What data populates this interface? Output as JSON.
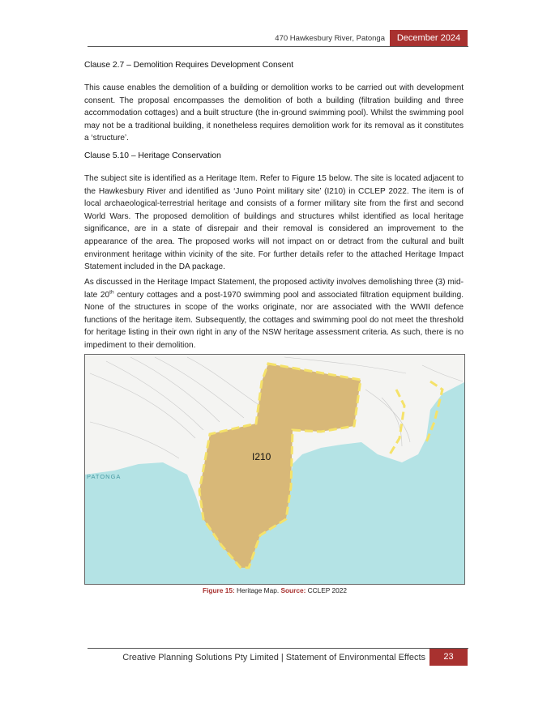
{
  "header": {
    "address": "470 Hawkesbury River, Patonga",
    "date": "December 2024"
  },
  "sections": [
    {
      "heading": "Clause 2.7 – Demolition Requires Development Consent",
      "paragraphs": [
        [
          "This cause enables the demolition of a building or demolition works to be carried out with development consent. The proposal encompasses the demolition of both a building (filtration building and three accommodation cottages) and a built structure (the in-ground swimming pool). Whilst the swimming pool may not be a traditional building, it nonetheless requires demolition work for its removal as it constitutes a ‘structure’."
        ]
      ]
    },
    {
      "heading": "Clause 5.10 – Heritage Conservation",
      "paragraphs": [
        [
          "The subject site is identified as a Heritage Item. Refer to ",
          "Figure 15",
          " below. The site is located adjacent to the Hawkesbury River and identified as ‘Juno Point military site’ (I210) in CCLEP 2022. The item is of local archaeological-terrestrial heritage and consists of a former military site from the first and second World Wars. The proposed demolition of buildings and structures whilst identified as local heritage significance, are in a state of disrepair and their removal is considered an improvement to the appearance of the area. The proposed works will not impact on or detract from the cultural and built environment heritage within vicinity of the site. For further details refer to the attached Heritage Impact Statement included in the DA package."
        ],
        [
          "As discussed in the Heritage Impact Statement, the proposed activity involves demolishing three (3) mid-late 20",
          "th",
          " century cottages and a post-1970 swimming pool and associated filtration equipment building. None of the structures in scope of the works originate, nor are associated with the WWII defence functions of the heritage item. Subsequently, the cottages and swimming pool do not meet the threshold for heritage listing in their own right in any of the NSW heritage assessment criteria. As such, there is no impediment to their demolition."
        ]
      ]
    }
  ],
  "figure": {
    "map_labels": [
      "I210",
      "PATONGA"
    ],
    "number": "Figure 15:",
    "title": "Heritage Map.",
    "source_label": "Source:",
    "source": "CCLEP 2022"
  },
  "footer": {
    "text": "Creative Planning Solutions Pty Limited | Statement of Environmental Effects",
    "page": "23"
  }
}
